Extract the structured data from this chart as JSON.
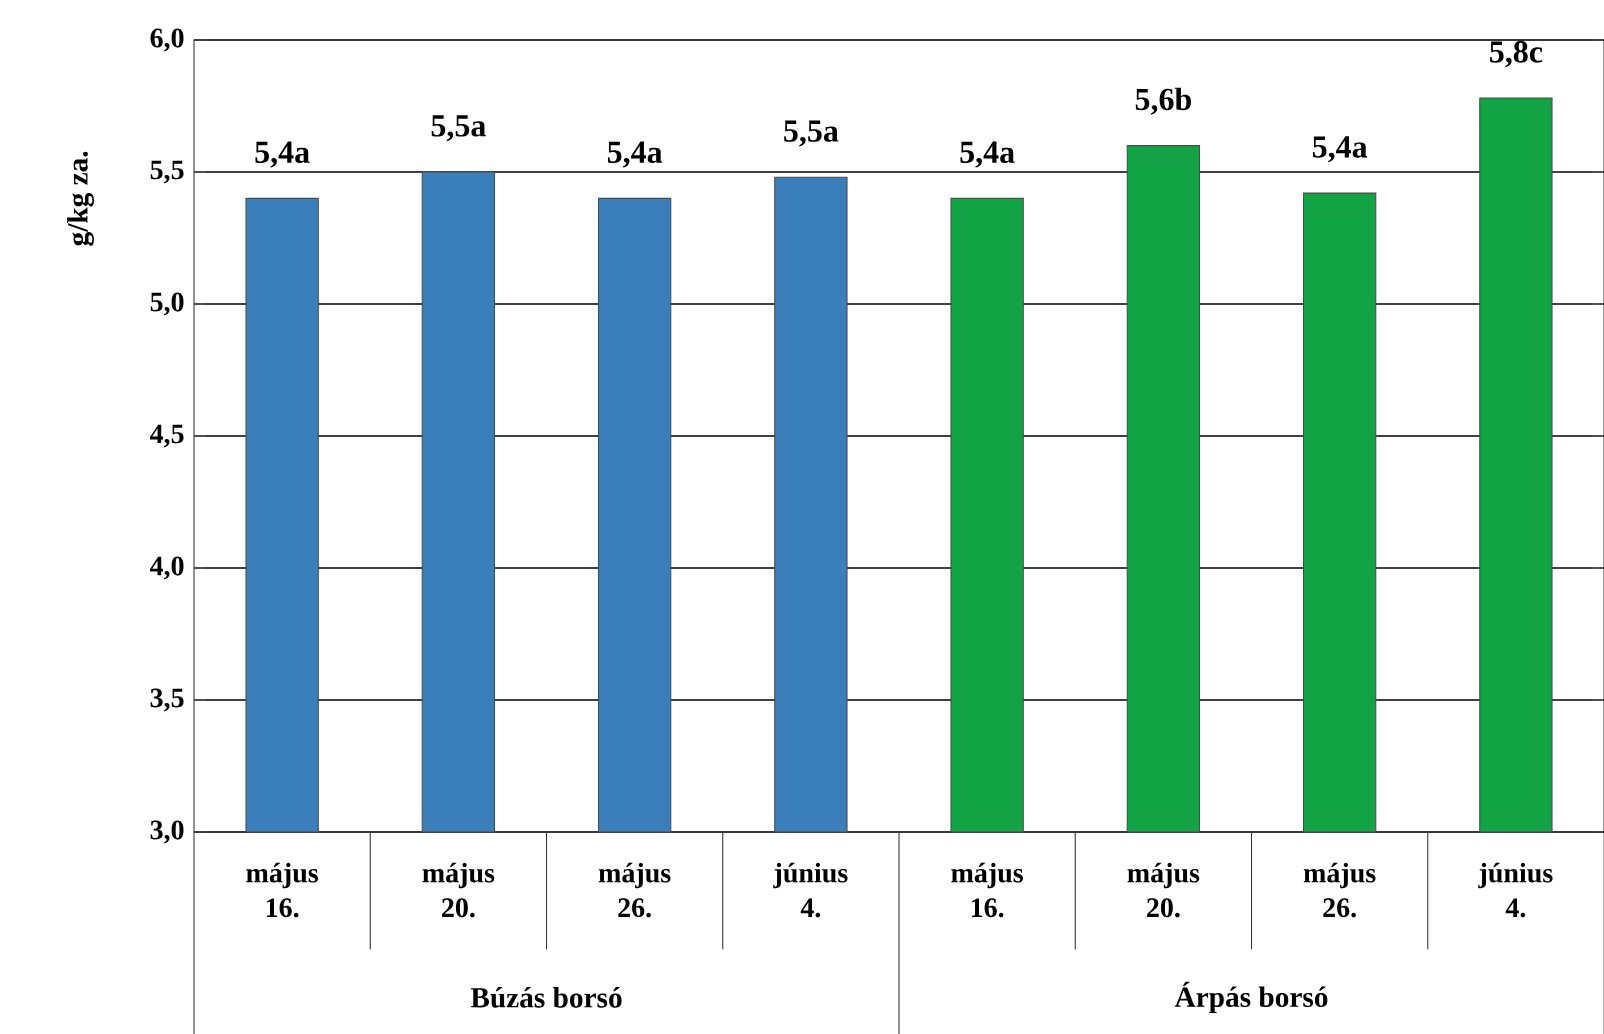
{
  "chart_data": {
    "type": "bar",
    "ylabel": "g/kg za.",
    "categories": [
      "május 16.",
      "május 20.",
      "május 26.",
      "június 4.",
      "május 16.",
      "május 20.",
      "május 26.",
      "június 4."
    ],
    "values": [
      5.4,
      5.5,
      5.4,
      5.48,
      5.4,
      5.6,
      5.42,
      5.78
    ],
    "colors": [
      "#3a7fba",
      "#3a7fba",
      "#3a7fba",
      "#3a7fba",
      "#12a344",
      "#12a344",
      "#12a344",
      "#12a344"
    ],
    "value_labels": [
      "5,4a",
      "5,5a",
      "5,4a",
      "5,5a",
      "5,4a",
      "5,6b",
      "5,4a",
      "5,8c"
    ],
    "annotations": [
      "Búzás borsó",
      "Árpás borsó"
    ],
    "ylim": [
      3,
      6
    ],
    "yticks": [
      {
        "value": 3,
        "label": "3,0"
      },
      {
        "value": 3.5,
        "label": "3,5"
      },
      {
        "value": 4,
        "label": "4,0"
      },
      {
        "value": 4.5,
        "label": "4,5"
      },
      {
        "value": 5,
        "label": "5,0"
      },
      {
        "value": 5.5,
        "label": "5,5"
      },
      {
        "value": 6,
        "label": "6,0"
      }
    ],
    "grid": "y"
  }
}
